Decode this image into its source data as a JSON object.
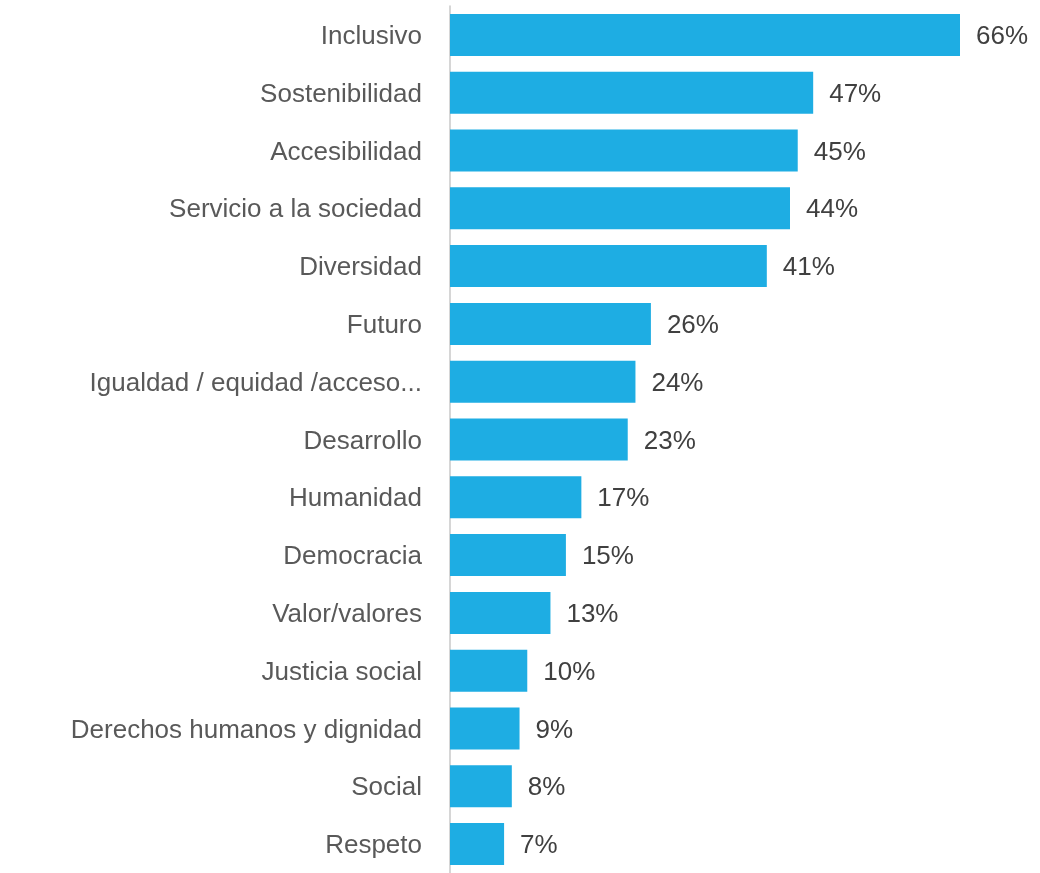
{
  "chart_data": {
    "type": "bar",
    "orientation": "horizontal",
    "categories": [
      "Inclusivo",
      "Sostenibilidad",
      "Accesibilidad",
      "Servicio a la sociedad",
      "Diversidad",
      "Futuro",
      "Igualdad / equidad /acceso...",
      "Desarrollo",
      "Humanidad",
      "Democracia",
      "Valor/valores",
      "Justicia social",
      "Derechos humanos y dignidad",
      "Social",
      "Respeto"
    ],
    "values": [
      66,
      47,
      45,
      44,
      41,
      26,
      24,
      23,
      17,
      15,
      13,
      10,
      9,
      8,
      7
    ],
    "value_labels": [
      "66%",
      "47%",
      "45%",
      "44%",
      "41%",
      "26%",
      "24%",
      "23%",
      "17%",
      "15%",
      "13%",
      "10%",
      "9%",
      "8%",
      "7%"
    ],
    "color": "#1eade3"
  }
}
